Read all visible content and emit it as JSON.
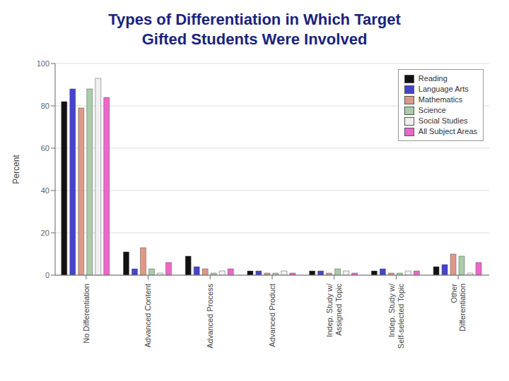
{
  "chart_data": {
    "type": "bar",
    "title": "Types of Differentiation in Which Target\nGifted Students Were Involved",
    "ylabel": "Percent",
    "categories": [
      "No Differentiation",
      "Advanced Content",
      "Advanced Process",
      "Advanced Product",
      "Indep. Study w/\nAssigned Topic",
      "Indep. Study w/\nSelf-selected Topic",
      "Other\nDifferentiation"
    ],
    "series": [
      {
        "name": "Reading",
        "color": "#111111",
        "values": [
          82,
          11,
          9,
          2,
          2,
          2,
          4
        ]
      },
      {
        "name": "Language Arts",
        "color": "#4444cc",
        "values": [
          88,
          3,
          4,
          2,
          2,
          3,
          5
        ]
      },
      {
        "name": "Mathematics",
        "color": "#dd9988",
        "values": [
          79,
          13,
          3,
          1,
          1,
          1,
          10
        ]
      },
      {
        "name": "Science",
        "color": "#aaccaa",
        "values": [
          88,
          3,
          1,
          1,
          3,
          1,
          9
        ]
      },
      {
        "name": "Social Studies",
        "color": "#f0f0f0",
        "values": [
          93,
          1,
          2,
          2,
          2,
          2,
          1
        ]
      },
      {
        "name": "All Subject Areas",
        "color": "#ee66cc",
        "values": [
          84,
          6,
          3,
          1,
          1,
          2,
          6
        ]
      }
    ],
    "ylim": [
      0,
      100
    ],
    "yticks": [
      0,
      20,
      40,
      60,
      80,
      100
    ],
    "grid": true,
    "legend": "upper right"
  }
}
